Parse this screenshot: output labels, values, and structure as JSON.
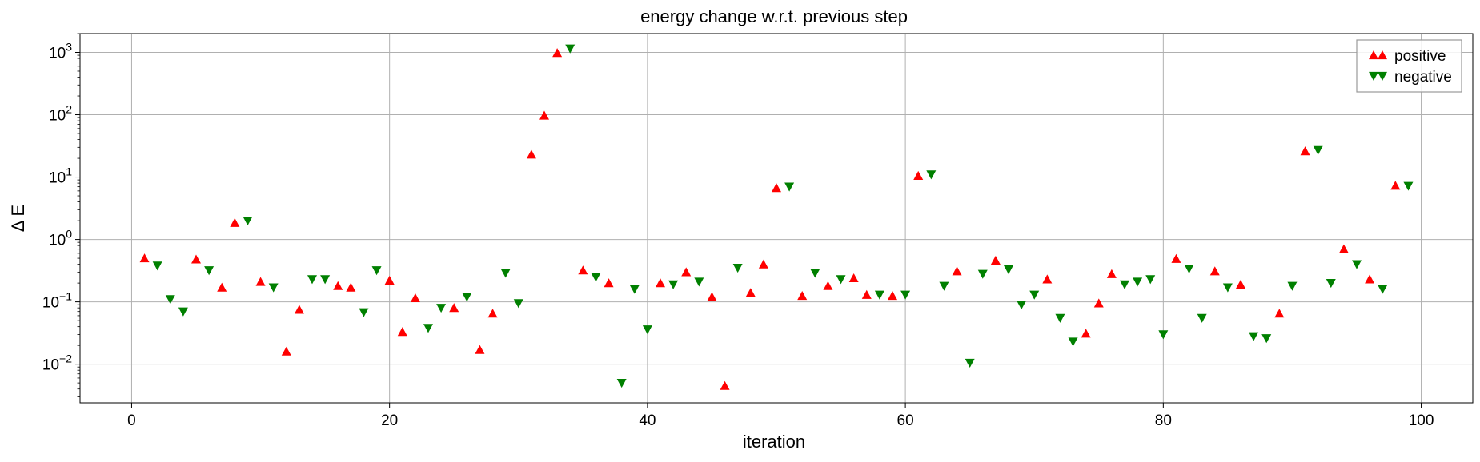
{
  "chart_data": {
    "type": "scatter",
    "title": "energy change w.r.t. previous step",
    "xlabel": "iteration",
    "ylabel": "Δ E",
    "xlim": [
      -4,
      104
    ],
    "ylim": [
      0.0024,
      2000
    ],
    "yscale": "log",
    "grid": true,
    "legend_position": "top-right",
    "x_ticks": [
      0,
      20,
      40,
      60,
      80,
      100
    ],
    "x_tick_labels": [
      "0",
      "20",
      "40",
      "60",
      "80",
      "100"
    ],
    "y_tick_labels": [
      {
        "value": 0.01,
        "base": "10",
        "exp": "−2"
      },
      {
        "value": 0.1,
        "base": "10",
        "exp": "−1"
      },
      {
        "value": 1,
        "base": "10",
        "exp": "0"
      },
      {
        "value": 10,
        "base": "10",
        "exp": "1"
      },
      {
        "value": 100,
        "base": "10",
        "exp": "2"
      },
      {
        "value": 1000,
        "base": "10",
        "exp": "3"
      }
    ],
    "series": [
      {
        "name": "positive",
        "color": "#ff0000",
        "marker": "triangle-up",
        "points": [
          [
            1,
            0.5
          ],
          [
            5,
            0.48
          ],
          [
            7,
            0.17
          ],
          [
            8,
            1.85
          ],
          [
            10,
            0.21
          ],
          [
            12,
            0.016
          ],
          [
            13,
            0.075
          ],
          [
            16,
            0.18
          ],
          [
            17,
            0.17
          ],
          [
            20,
            0.22
          ],
          [
            21,
            0.033
          ],
          [
            22,
            0.115
          ],
          [
            25,
            0.08
          ],
          [
            27,
            0.017
          ],
          [
            28,
            0.065
          ],
          [
            31,
            23
          ],
          [
            32,
            97
          ],
          [
            33,
            980
          ],
          [
            35,
            0.32
          ],
          [
            37,
            0.2
          ],
          [
            41,
            0.2
          ],
          [
            43,
            0.3
          ],
          [
            45,
            0.12
          ],
          [
            46,
            0.0045
          ],
          [
            48,
            0.14
          ],
          [
            49,
            0.4
          ],
          [
            50,
            6.7
          ],
          [
            52,
            0.125
          ],
          [
            54,
            0.18
          ],
          [
            56,
            0.24
          ],
          [
            57,
            0.13
          ],
          [
            59,
            0.125
          ],
          [
            61,
            10.5
          ],
          [
            64,
            0.31
          ],
          [
            67,
            0.46
          ],
          [
            71,
            0.23
          ],
          [
            74,
            0.031
          ],
          [
            75,
            0.095
          ],
          [
            76,
            0.28
          ],
          [
            81,
            0.49
          ],
          [
            84,
            0.31
          ],
          [
            86,
            0.19
          ],
          [
            89,
            0.065
          ],
          [
            91,
            26
          ],
          [
            94,
            0.7
          ],
          [
            96,
            0.23
          ],
          [
            98,
            7.3
          ]
        ]
      },
      {
        "name": "negative",
        "color": "#008000",
        "marker": "triangle-down",
        "points": [
          [
            2,
            0.38
          ],
          [
            3,
            0.11
          ],
          [
            4,
            0.07
          ],
          [
            6,
            0.32
          ],
          [
            9,
            2.0
          ],
          [
            11,
            0.17
          ],
          [
            14,
            0.23
          ],
          [
            15,
            0.23
          ],
          [
            18,
            0.068
          ],
          [
            19,
            0.32
          ],
          [
            23,
            0.038
          ],
          [
            24,
            0.08
          ],
          [
            26,
            0.12
          ],
          [
            29,
            0.29
          ],
          [
            30,
            0.095
          ],
          [
            34,
            1150
          ],
          [
            36,
            0.25
          ],
          [
            38,
            0.005
          ],
          [
            39,
            0.16
          ],
          [
            40,
            0.036
          ],
          [
            42,
            0.19
          ],
          [
            44,
            0.21
          ],
          [
            47,
            0.35
          ],
          [
            51,
            7.0
          ],
          [
            53,
            0.29
          ],
          [
            55,
            0.23
          ],
          [
            58,
            0.13
          ],
          [
            60,
            0.13
          ],
          [
            62,
            11
          ],
          [
            63,
            0.18
          ],
          [
            65,
            0.0105
          ],
          [
            66,
            0.28
          ],
          [
            68,
            0.33
          ],
          [
            69,
            0.09
          ],
          [
            70,
            0.13
          ],
          [
            72,
            0.055
          ],
          [
            73,
            0.023
          ],
          [
            77,
            0.19
          ],
          [
            78,
            0.21
          ],
          [
            79,
            0.23
          ],
          [
            80,
            0.03
          ],
          [
            82,
            0.34
          ],
          [
            83,
            0.055
          ],
          [
            85,
            0.17
          ],
          [
            87,
            0.028
          ],
          [
            88,
            0.026
          ],
          [
            90,
            0.18
          ],
          [
            92,
            27
          ],
          [
            93,
            0.2
          ],
          [
            95,
            0.4
          ],
          [
            97,
            0.16
          ],
          [
            99,
            7.2
          ]
        ]
      }
    ]
  }
}
